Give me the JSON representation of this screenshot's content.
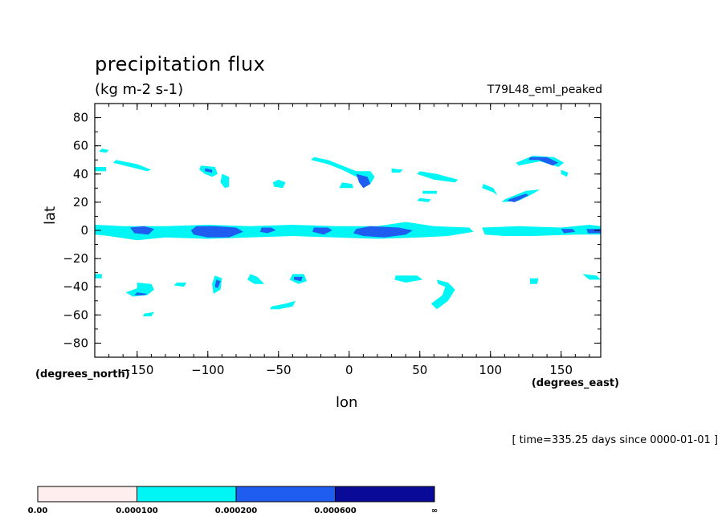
{
  "chart_data": {
    "type": "heatmap",
    "title": "precipitation flux",
    "units": "(kg m-2 s-1)",
    "run_label": "T79L48_eml_peaked",
    "xlabel": "lon",
    "ylabel": "lat",
    "x_units_label": "(degrees_east)",
    "y_units_label": "(degrees_north)",
    "time_label": "[ time=335.25 days since 0000-01-01 ]",
    "xlim": [
      -180,
      178
    ],
    "ylim": [
      -90,
      90
    ],
    "xticks": [
      -150,
      -100,
      -50,
      0,
      50,
      100,
      150
    ],
    "xtick_labels": [
      "−150",
      "−100",
      "−50",
      "0",
      "50",
      "100",
      "150"
    ],
    "yticks": [
      80,
      60,
      40,
      20,
      0,
      -20,
      -40,
      -60,
      -80
    ],
    "ytick_labels": [
      "80",
      "60",
      "40",
      "20",
      "0",
      "−20",
      "−40",
      "−60",
      "−80"
    ],
    "levels": [
      0.0,
      0.0001,
      0.0002,
      0.0006
    ],
    "level_labels": [
      "0.00",
      "0.000100",
      "0.000200",
      "0.000600",
      "∞"
    ],
    "level_colors": [
      "#ffeeee",
      "#00f5f5",
      "#1f5cf0",
      "#0a0a98"
    ],
    "regions": [
      {
        "level": 1,
        "pts": [
          [
            -180,
            4
          ],
          [
            -160,
            3
          ],
          [
            -130,
            3
          ],
          [
            -100,
            4
          ],
          [
            -70,
            3
          ],
          [
            -40,
            4
          ],
          [
            -10,
            3
          ],
          [
            20,
            3
          ],
          [
            40,
            6
          ],
          [
            60,
            3
          ],
          [
            85,
            2
          ],
          [
            88,
            -1
          ],
          [
            70,
            -4
          ],
          [
            50,
            -5
          ],
          [
            20,
            -6
          ],
          [
            -10,
            -5
          ],
          [
            -40,
            -4
          ],
          [
            -70,
            -5
          ],
          [
            -100,
            -6
          ],
          [
            -130,
            -5
          ],
          [
            -150,
            -7
          ],
          [
            -170,
            -4
          ],
          [
            -180,
            -3
          ]
        ]
      },
      {
        "level": 1,
        "pts": [
          [
            94,
            2
          ],
          [
            120,
            3
          ],
          [
            150,
            2
          ],
          [
            170,
            4
          ],
          [
            178,
            3
          ],
          [
            178,
            -3
          ],
          [
            160,
            -3
          ],
          [
            130,
            -4
          ],
          [
            110,
            -4
          ],
          [
            96,
            -3
          ]
        ]
      },
      {
        "level": 2,
        "pts": [
          [
            -155,
            2
          ],
          [
            -145,
            3
          ],
          [
            -138,
            1
          ],
          [
            -142,
            -3
          ],
          [
            -152,
            -2
          ]
        ]
      },
      {
        "level": 2,
        "pts": [
          [
            -108,
            3
          ],
          [
            -95,
            3
          ],
          [
            -80,
            2
          ],
          [
            -75,
            -1
          ],
          [
            -85,
            -5
          ],
          [
            -100,
            -5
          ],
          [
            -110,
            -3
          ],
          [
            -112,
            0
          ]
        ]
      },
      {
        "level": 2,
        "pts": [
          [
            -62,
            2
          ],
          [
            -55,
            2
          ],
          [
            -52,
            0
          ],
          [
            -58,
            -2
          ],
          [
            -63,
            -1
          ]
        ]
      },
      {
        "level": 2,
        "pts": [
          [
            -25,
            2
          ],
          [
            -15,
            2
          ],
          [
            -12,
            0
          ],
          [
            -18,
            -3
          ],
          [
            -26,
            -1
          ]
        ]
      },
      {
        "level": 2,
        "pts": [
          [
            5,
            1
          ],
          [
            15,
            3
          ],
          [
            35,
            2
          ],
          [
            45,
            0
          ],
          [
            40,
            -3
          ],
          [
            25,
            -5
          ],
          [
            10,
            -4
          ],
          [
            3,
            -2
          ]
        ]
      },
      {
        "level": 2,
        "pts": [
          [
            150,
            1
          ],
          [
            158,
            1
          ],
          [
            160,
            -1
          ],
          [
            152,
            -2
          ]
        ]
      },
      {
        "level": 2,
        "pts": [
          [
            168,
            1
          ],
          [
            178,
            1
          ],
          [
            178,
            -2
          ],
          [
            169,
            -2
          ]
        ]
      },
      {
        "level": 1,
        "pts": [
          [
            -175,
            58
          ],
          [
            -170,
            57
          ],
          [
            -172,
            55
          ],
          [
            -177,
            56
          ]
        ]
      },
      {
        "level": 1,
        "pts": [
          [
            -165,
            50
          ],
          [
            -150,
            47
          ],
          [
            -140,
            43
          ],
          [
            -143,
            42
          ],
          [
            -155,
            45
          ],
          [
            -167,
            48
          ]
        ]
      },
      {
        "level": 1,
        "pts": [
          [
            -180,
            45
          ],
          [
            -172,
            45
          ],
          [
            -172,
            42
          ],
          [
            -180,
            42
          ]
        ]
      },
      {
        "level": 1,
        "pts": [
          [
            -105,
            46
          ],
          [
            -95,
            45
          ],
          [
            -93,
            40
          ],
          [
            -97,
            38
          ],
          [
            -102,
            40
          ],
          [
            -106,
            43
          ]
        ]
      },
      {
        "level": 2,
        "pts": [
          [
            -102,
            44
          ],
          [
            -97,
            43
          ],
          [
            -97,
            41
          ],
          [
            -102,
            42
          ]
        ]
      },
      {
        "level": 1,
        "pts": [
          [
            -90,
            40
          ],
          [
            -85,
            38
          ],
          [
            -85,
            31
          ],
          [
            -88,
            30
          ],
          [
            -91,
            34
          ]
        ]
      },
      {
        "level": 1,
        "pts": [
          [
            -50,
            36
          ],
          [
            -45,
            34
          ],
          [
            -47,
            30
          ],
          [
            -53,
            31
          ],
          [
            -54,
            34
          ]
        ]
      },
      {
        "level": 1,
        "pts": [
          [
            -25,
            52
          ],
          [
            -15,
            50
          ],
          [
            -5,
            46
          ],
          [
            5,
            42
          ],
          [
            15,
            42
          ],
          [
            18,
            38
          ],
          [
            15,
            33
          ],
          [
            10,
            36
          ],
          [
            3,
            39
          ],
          [
            -5,
            43
          ],
          [
            -15,
            47
          ],
          [
            -27,
            50
          ]
        ]
      },
      {
        "level": 2,
        "pts": [
          [
            5,
            40
          ],
          [
            13,
            38
          ],
          [
            15,
            33
          ],
          [
            10,
            30
          ],
          [
            7,
            34
          ]
        ]
      },
      {
        "level": 1,
        "pts": [
          [
            -5,
            34
          ],
          [
            2,
            33
          ],
          [
            3,
            30
          ],
          [
            -7,
            30
          ]
        ]
      },
      {
        "level": 1,
        "pts": [
          [
            30,
            44
          ],
          [
            38,
            43
          ],
          [
            36,
            41
          ],
          [
            30,
            41
          ]
        ]
      },
      {
        "level": 1,
        "pts": [
          [
            48,
            40
          ],
          [
            60,
            36
          ],
          [
            75,
            34
          ],
          [
            77,
            36
          ],
          [
            62,
            40
          ],
          [
            50,
            42
          ]
        ]
      },
      {
        "level": 1,
        "pts": [
          [
            52,
            28
          ],
          [
            62,
            28
          ],
          [
            62,
            26
          ],
          [
            52,
            26
          ]
        ]
      },
      {
        "level": 1,
        "pts": [
          [
            50,
            23
          ],
          [
            58,
            22
          ],
          [
            56,
            20
          ],
          [
            48,
            21
          ]
        ]
      },
      {
        "level": 1,
        "pts": [
          [
            118,
            48
          ],
          [
            130,
            53
          ],
          [
            145,
            52
          ],
          [
            152,
            48
          ],
          [
            148,
            45
          ],
          [
            135,
            49
          ],
          [
            120,
            46
          ]
        ]
      },
      {
        "level": 2,
        "pts": [
          [
            128,
            52
          ],
          [
            140,
            52
          ],
          [
            148,
            48
          ],
          [
            144,
            46
          ],
          [
            134,
            50
          ],
          [
            127,
            50
          ]
        ]
      },
      {
        "level": 1,
        "pts": [
          [
            110,
            22
          ],
          [
            125,
            28
          ],
          [
            135,
            29
          ],
          [
            130,
            26
          ],
          [
            120,
            21
          ],
          [
            108,
            20
          ]
        ]
      },
      {
        "level": 2,
        "pts": [
          [
            113,
            22
          ],
          [
            125,
            26
          ],
          [
            127,
            25
          ],
          [
            117,
            20
          ],
          [
            112,
            21
          ]
        ]
      },
      {
        "level": 1,
        "pts": [
          [
            95,
            33
          ],
          [
            102,
            30
          ],
          [
            105,
            25
          ],
          [
            102,
            27
          ],
          [
            94,
            30
          ]
        ]
      },
      {
        "level": 1,
        "pts": [
          [
            150,
            43
          ],
          [
            155,
            41
          ],
          [
            154,
            38
          ],
          [
            150,
            40
          ]
        ]
      },
      {
        "level": 1,
        "pts": [
          [
            -180,
            -31
          ],
          [
            -175,
            -31
          ],
          [
            -175,
            -34
          ],
          [
            -180,
            -34
          ]
        ]
      },
      {
        "level": 1,
        "pts": [
          [
            -150,
            -37
          ],
          [
            -140,
            -38
          ],
          [
            -138,
            -42
          ],
          [
            -143,
            -46
          ],
          [
            -153,
            -47
          ],
          [
            -158,
            -44
          ],
          [
            -150,
            -41
          ]
        ]
      },
      {
        "level": 2,
        "pts": [
          [
            -150,
            -44
          ],
          [
            -143,
            -45
          ],
          [
            -145,
            -46
          ],
          [
            -152,
            -46
          ]
        ]
      },
      {
        "level": 1,
        "pts": [
          [
            -122,
            -37
          ],
          [
            -115,
            -37
          ],
          [
            -117,
            -40
          ],
          [
            -124,
            -39
          ]
        ]
      },
      {
        "level": 1,
        "pts": [
          [
            -95,
            -32
          ],
          [
            -90,
            -34
          ],
          [
            -91,
            -42
          ],
          [
            -96,
            -45
          ],
          [
            -97,
            -38
          ]
        ]
      },
      {
        "level": 2,
        "pts": [
          [
            -94,
            -35
          ],
          [
            -91,
            -36
          ],
          [
            -93,
            -41
          ],
          [
            -95,
            -40
          ]
        ]
      },
      {
        "level": 1,
        "pts": [
          [
            -70,
            -31
          ],
          [
            -65,
            -33
          ],
          [
            -60,
            -38
          ],
          [
            -67,
            -38
          ],
          [
            -72,
            -35
          ]
        ]
      },
      {
        "level": 1,
        "pts": [
          [
            -40,
            -31
          ],
          [
            -32,
            -31
          ],
          [
            -30,
            -36
          ],
          [
            -36,
            -38
          ],
          [
            -42,
            -35
          ]
        ]
      },
      {
        "level": 2,
        "pts": [
          [
            -39,
            -33
          ],
          [
            -33,
            -33
          ],
          [
            -34,
            -36
          ],
          [
            -39,
            -35
          ]
        ]
      },
      {
        "level": 1,
        "pts": [
          [
            -55,
            -54
          ],
          [
            -45,
            -52
          ],
          [
            -38,
            -50
          ],
          [
            -40,
            -54
          ],
          [
            -50,
            -56
          ],
          [
            -56,
            -56
          ]
        ]
      },
      {
        "level": 1,
        "pts": [
          [
            -145,
            -59
          ],
          [
            -138,
            -58
          ],
          [
            -140,
            -61
          ],
          [
            -146,
            -61
          ]
        ]
      },
      {
        "level": 1,
        "pts": [
          [
            33,
            -32
          ],
          [
            48,
            -32
          ],
          [
            52,
            -35
          ],
          [
            40,
            -37
          ],
          [
            32,
            -35
          ]
        ]
      },
      {
        "level": 1,
        "pts": [
          [
            62,
            -35
          ],
          [
            70,
            -37
          ],
          [
            75,
            -42
          ],
          [
            70,
            -50
          ],
          [
            62,
            -56
          ],
          [
            58,
            -52
          ],
          [
            66,
            -46
          ],
          [
            68,
            -40
          ],
          [
            63,
            -38
          ]
        ]
      },
      {
        "level": 1,
        "pts": [
          [
            128,
            -34
          ],
          [
            134,
            -34
          ],
          [
            133,
            -38
          ],
          [
            128,
            -38
          ]
        ]
      },
      {
        "level": 1,
        "pts": [
          [
            165,
            -31
          ],
          [
            175,
            -32
          ],
          [
            178,
            -35
          ],
          [
            170,
            -35
          ]
        ]
      }
    ]
  }
}
